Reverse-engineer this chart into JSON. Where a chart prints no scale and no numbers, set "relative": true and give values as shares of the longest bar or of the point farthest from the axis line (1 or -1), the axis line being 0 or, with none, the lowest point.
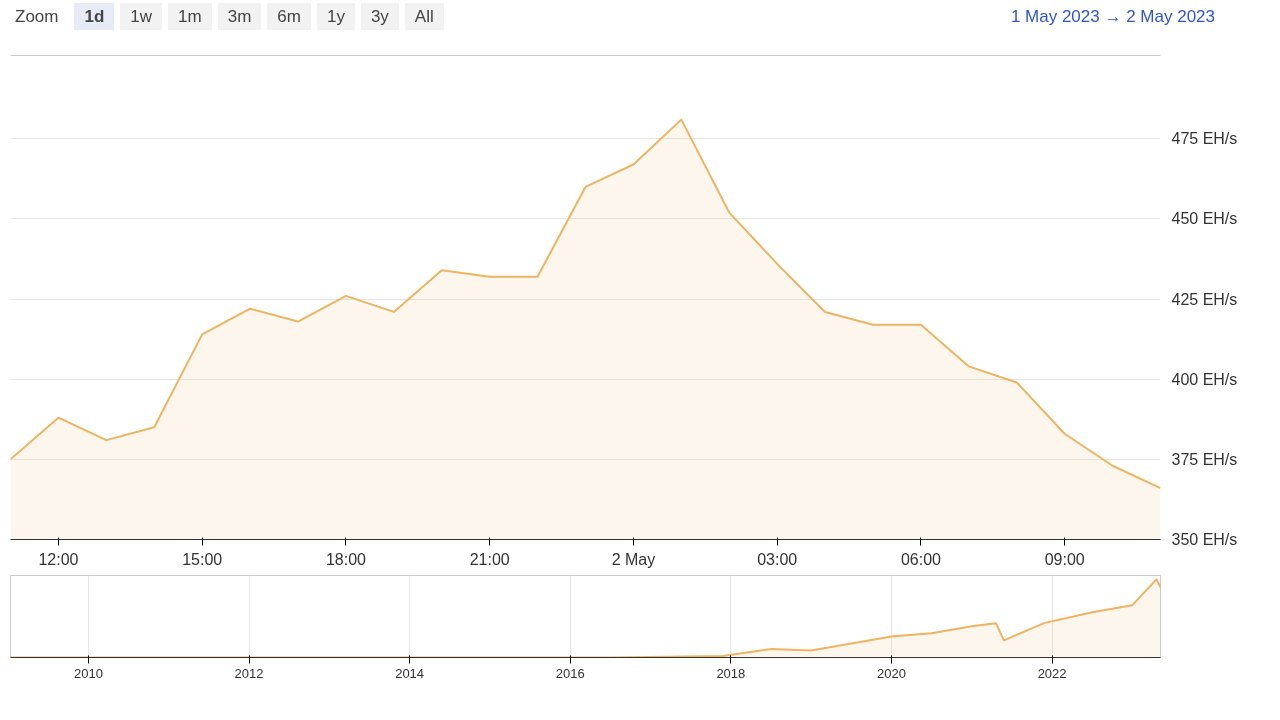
{
  "chart_data": [
    {
      "type": "area",
      "annotations": [
        "Zoom",
        "1d",
        "1w",
        "1m",
        "3m",
        "6m",
        "1y",
        "3y",
        "All",
        "1 May 2023 → 2 May 2023"
      ],
      "x": [
        "2023-05-01T11:00",
        "2023-05-01T12:00",
        "2023-05-01T13:00",
        "2023-05-01T14:00",
        "2023-05-01T15:00",
        "2023-05-01T16:00",
        "2023-05-01T17:00",
        "2023-05-01T18:00",
        "2023-05-01T19:00",
        "2023-05-01T20:00",
        "2023-05-01T21:00",
        "2023-05-01T22:00",
        "2023-05-01T23:00",
        "2023-05-02T00:00",
        "2023-05-02T01:00",
        "2023-05-02T02:00",
        "2023-05-02T03:00",
        "2023-05-02T04:00",
        "2023-05-02T05:00",
        "2023-05-02T06:00",
        "2023-05-02T07:00",
        "2023-05-02T08:00",
        "2023-05-02T09:00",
        "2023-05-02T10:00",
        "2023-05-02T11:00"
      ],
      "series": [
        {
          "color": "#eeb462",
          "values": [
            375,
            388,
            381,
            385,
            414,
            422,
            418,
            426,
            421,
            434,
            432,
            432,
            460,
            467,
            481,
            452,
            436,
            421,
            417,
            417,
            404,
            399,
            383,
            373,
            366
          ]
        }
      ],
      "xlim": [
        "2023-05-01T11:00",
        "2023-05-02T11:00"
      ],
      "ylim": [
        350,
        501
      ],
      "xticks": [
        {
          "value": "2023-05-01T12:00",
          "label": "12:00"
        },
        {
          "value": "2023-05-01T15:00",
          "label": "15:00"
        },
        {
          "value": "2023-05-01T18:00",
          "label": "18:00"
        },
        {
          "value": "2023-05-01T21:00",
          "label": "21:00"
        },
        {
          "value": "2023-05-02T00:00",
          "label": "2 May"
        },
        {
          "value": "2023-05-02T03:00",
          "label": "03:00"
        },
        {
          "value": "2023-05-02T06:00",
          "label": "06:00"
        },
        {
          "value": "2023-05-02T09:00",
          "label": "09:00"
        }
      ],
      "yticks": [
        {
          "value": 350,
          "label": "350 EH/s"
        },
        {
          "value": 375,
          "label": "375 EH/s"
        },
        {
          "value": 400,
          "label": "400 EH/s"
        },
        {
          "value": 425,
          "label": "425 EH/s"
        },
        {
          "value": 450,
          "label": "450 EH/s"
        },
        {
          "value": 475,
          "label": "475 EH/s"
        }
      ],
      "grid": "y"
    },
    {
      "type": "area",
      "relative": true,
      "tick_labels": "x",
      "grid": "x",
      "x": [
        2009.03,
        2016.5,
        2017.9,
        2018.5,
        2019.0,
        2019.5,
        2020.0,
        2020.5,
        2021.0,
        2021.3,
        2021.4,
        2021.9,
        2022.5,
        2023.0,
        2023.3,
        2023.35
      ],
      "series": [
        {
          "color": "#eeb462",
          "values": [
            0,
            0,
            0.02,
            0.11,
            0.09,
            0.18,
            0.27,
            0.31,
            0.4,
            0.44,
            0.22,
            0.44,
            0.58,
            0.67,
            1.0,
            0.9
          ]
        }
      ],
      "xlim": [
        2009.03,
        2023.35
      ],
      "xticks": [
        2010,
        2012,
        2014,
        2016,
        2018,
        2020,
        2022
      ]
    }
  ]
}
